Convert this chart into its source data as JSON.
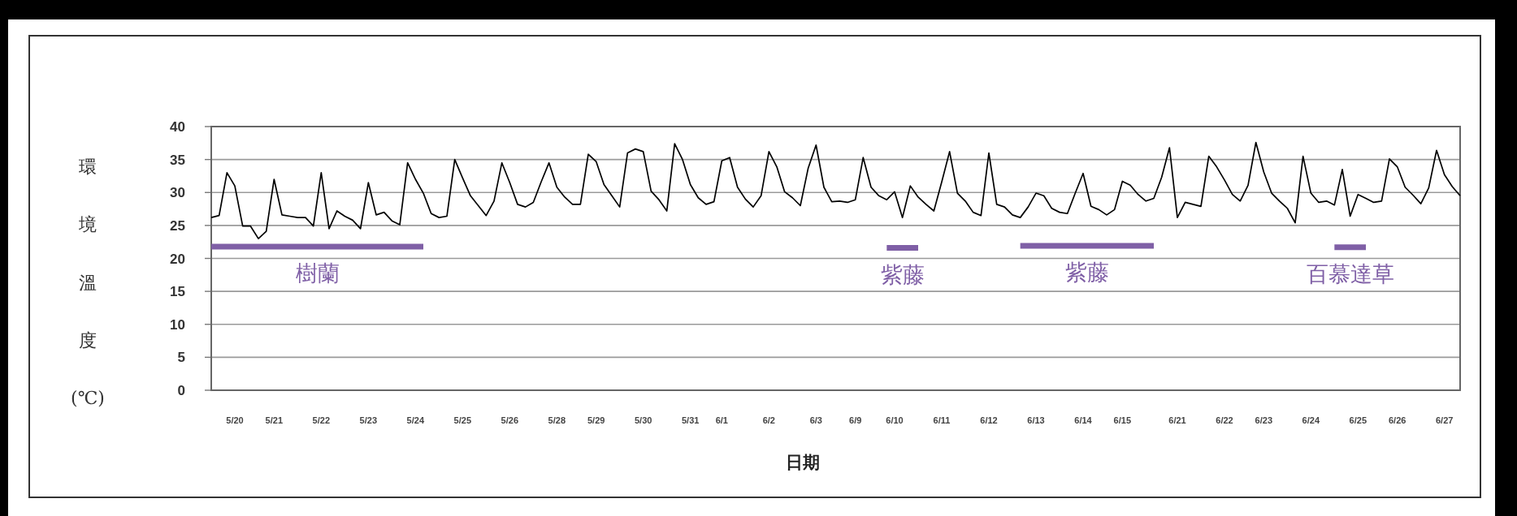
{
  "chart_data": {
    "type": "line",
    "xlabel": "日期",
    "ylabel": "環境溫度(℃)",
    "ylim": [
      0,
      40
    ],
    "yticks": [
      0,
      5,
      10,
      15,
      20,
      25,
      30,
      35,
      40
    ],
    "grid": "y",
    "line_style": "solid",
    "categories": [
      null,
      null,
      null,
      "5/20",
      null,
      null,
      null,
      null,
      "5/21",
      null,
      null,
      null,
      null,
      null,
      "5/22",
      null,
      null,
      null,
      null,
      null,
      "5/23",
      null,
      null,
      null,
      null,
      null,
      "5/24",
      null,
      null,
      null,
      null,
      null,
      "5/25",
      null,
      null,
      null,
      null,
      null,
      "5/26",
      null,
      null,
      null,
      null,
      null,
      "5/28",
      null,
      null,
      null,
      null,
      "5/29",
      null,
      null,
      null,
      null,
      null,
      "5/30",
      null,
      null,
      null,
      null,
      null,
      "5/31",
      null,
      null,
      null,
      "6/1",
      null,
      null,
      null,
      null,
      null,
      "6/2",
      null,
      null,
      null,
      null,
      null,
      "6/3",
      null,
      null,
      null,
      null,
      "6/9",
      null,
      null,
      null,
      null,
      "6/10",
      null,
      null,
      null,
      null,
      null,
      "6/11",
      null,
      null,
      null,
      null,
      null,
      "6/12",
      null,
      null,
      null,
      null,
      null,
      "6/13",
      null,
      null,
      null,
      null,
      null,
      "6/14",
      null,
      null,
      null,
      null,
      "6/15",
      null,
      null,
      null,
      null,
      null,
      null,
      "6/21",
      null,
      null,
      null,
      null,
      null,
      "6/22",
      null,
      null,
      null,
      null,
      "6/23",
      null,
      null,
      null,
      null,
      null,
      "6/24",
      null,
      null,
      null,
      null,
      null,
      "6/25",
      null,
      null,
      null,
      null,
      "6/26",
      null,
      null,
      null,
      null,
      null,
      "6/27",
      null,
      null
    ],
    "series": [
      {
        "type": "line",
        "color": "#000000",
        "values": [
          26.2,
          26.5,
          33,
          31,
          24.9,
          24.9,
          23,
          24.1,
          32,
          26.6,
          26.4,
          26.2,
          26.2,
          24.9,
          33,
          24.5,
          27.2,
          26.4,
          25.8,
          24.5,
          31.5,
          26.6,
          27,
          25.7,
          25.1,
          34.5,
          32,
          29.9,
          26.8,
          26.2,
          26.4,
          35,
          32.2,
          29.5,
          28,
          26.5,
          28.7,
          34.5,
          31.5,
          28.2,
          27.8,
          28.5,
          31.6,
          34.5,
          30.8,
          29.3,
          28.2,
          28.2,
          35.8,
          34.7,
          31.2,
          29.5,
          27.8,
          36,
          36.6,
          36.2,
          30.2,
          28.9,
          27.2,
          37.4,
          35,
          31.2,
          29.2,
          28.2,
          28.6,
          34.8,
          35.3,
          30.8,
          29,
          27.8,
          29.5,
          36.2,
          33.9,
          30.1,
          29.2,
          28,
          33.7,
          37.2,
          30.8,
          28.6,
          28.7,
          28.5,
          28.9,
          35.3,
          30.8,
          29.5,
          28.9,
          30.1,
          26.2,
          31,
          29.3,
          28.2,
          27.2,
          31.6,
          36.2,
          29.9,
          28.7,
          27,
          26.5,
          36,
          28.2,
          27.8,
          26.6,
          26.2,
          27.8,
          29.9,
          29.5,
          27.6,
          27,
          26.8,
          29.9,
          32.9,
          27.9,
          27.4,
          26.6,
          27.4,
          31.7,
          31.1,
          29.7,
          28.7,
          29.1,
          32.3,
          36.8,
          26.2,
          28.5,
          28.2,
          27.9,
          35.5,
          33.9,
          31.9,
          29.7,
          28.7,
          31.1,
          37.6,
          33.1,
          29.9,
          28.7,
          27.6,
          25.4,
          35.5,
          29.9,
          28.5,
          28.7,
          28.1,
          33.5,
          26.4,
          29.7,
          29.1,
          28.5,
          28.7,
          35.1,
          33.9,
          30.8,
          29.6,
          28.3,
          30.7,
          36.4,
          32.7,
          30.9,
          29.5
        ]
      },
      {
        "type": "line",
        "name": "樹蘭",
        "color": "#7f5fa6",
        "values": [
          21.8,
          21.8,
          21.8,
          21.8,
          21.8,
          21.8,
          21.8,
          21.8,
          21.8,
          21.8,
          21.8,
          21.8,
          21.8,
          21.8,
          21.8,
          21.8,
          21.8,
          21.8,
          21.8,
          21.8,
          21.8,
          21.8,
          21.8,
          21.8,
          21.8,
          21.8,
          21.8,
          21.8,
          null,
          null,
          null,
          null,
          null,
          null,
          null,
          null,
          null,
          null,
          null,
          null,
          null,
          null,
          null,
          null,
          null,
          null,
          null,
          null,
          null,
          null,
          null,
          null,
          null,
          null,
          null,
          null,
          null,
          null,
          null,
          null,
          null,
          null,
          null,
          null,
          null,
          null,
          null,
          null,
          null,
          null,
          null,
          null,
          null,
          null,
          null,
          null,
          null,
          null,
          null,
          null,
          null,
          null,
          null,
          null,
          null,
          null,
          null,
          null,
          null,
          null,
          null,
          null,
          null,
          null,
          null,
          null,
          null,
          null,
          null,
          null,
          null,
          null,
          null,
          null,
          null,
          null,
          null,
          null,
          null,
          null,
          null,
          null,
          null,
          null,
          null,
          null,
          null,
          null,
          null,
          null,
          null,
          null,
          null,
          null,
          null,
          null,
          null,
          null,
          null,
          null,
          null,
          null,
          null,
          null,
          null,
          null,
          null,
          null,
          null,
          null,
          null,
          null,
          null,
          null,
          null,
          null,
          null,
          null,
          null,
          null,
          null,
          null,
          null,
          null,
          null,
          null,
          null,
          null,
          null,
          null
        ]
      },
      {
        "type": "line",
        "name": "紫藤",
        "color": "#7f5fa6",
        "values": [
          null,
          null,
          null,
          null,
          null,
          null,
          null,
          null,
          null,
          null,
          null,
          null,
          null,
          null,
          null,
          null,
          null,
          null,
          null,
          null,
          null,
          null,
          null,
          null,
          null,
          null,
          null,
          null,
          null,
          null,
          null,
          null,
          null,
          null,
          null,
          null,
          null,
          null,
          null,
          null,
          null,
          null,
          null,
          null,
          null,
          null,
          null,
          null,
          null,
          null,
          null,
          null,
          null,
          null,
          null,
          null,
          null,
          null,
          null,
          null,
          null,
          null,
          null,
          null,
          null,
          null,
          null,
          null,
          null,
          null,
          null,
          null,
          null,
          null,
          null,
          null,
          null,
          null,
          null,
          null,
          null,
          null,
          null,
          null,
          null,
          null,
          21.6,
          21.6,
          21.6,
          21.6,
          21.6,
          null,
          null,
          null,
          null,
          null,
          null,
          null,
          null,
          null,
          null,
          null,
          null,
          null,
          null,
          null,
          null,
          null,
          null,
          null,
          null,
          null,
          null,
          null,
          null,
          null,
          null,
          null,
          null,
          null,
          null,
          null,
          null,
          null,
          null,
          null,
          null,
          null,
          null,
          null,
          null,
          null,
          null,
          null,
          null,
          null,
          null,
          null,
          null,
          null,
          null,
          null,
          null,
          null,
          null,
          null,
          null,
          null,
          null,
          null,
          null,
          null,
          null,
          null,
          null,
          null,
          null,
          null,
          null,
          null
        ]
      },
      {
        "type": "line",
        "name": "紫藤",
        "color": "#7f5fa6",
        "values": [
          null,
          null,
          null,
          null,
          null,
          null,
          null,
          null,
          null,
          null,
          null,
          null,
          null,
          null,
          null,
          null,
          null,
          null,
          null,
          null,
          null,
          null,
          null,
          null,
          null,
          null,
          null,
          null,
          null,
          null,
          null,
          null,
          null,
          null,
          null,
          null,
          null,
          null,
          null,
          null,
          null,
          null,
          null,
          null,
          null,
          null,
          null,
          null,
          null,
          null,
          null,
          null,
          null,
          null,
          null,
          null,
          null,
          null,
          null,
          null,
          null,
          null,
          null,
          null,
          null,
          null,
          null,
          null,
          null,
          null,
          null,
          null,
          null,
          null,
          null,
          null,
          null,
          null,
          null,
          null,
          null,
          null,
          null,
          null,
          null,
          null,
          null,
          null,
          null,
          null,
          null,
          null,
          null,
          null,
          null,
          null,
          null,
          null,
          null,
          null,
          null,
          null,
          null,
          21.9,
          21.9,
          21.9,
          21.9,
          21.9,
          21.9,
          21.9,
          21.9,
          21.9,
          21.9,
          21.9,
          21.9,
          21.9,
          21.9,
          21.9,
          21.9,
          21.9,
          21.9,
          null,
          null,
          null,
          null,
          null,
          null,
          null,
          null,
          null,
          null,
          null,
          null,
          null,
          null,
          null,
          null,
          null,
          null,
          null,
          null,
          null,
          null,
          null,
          null,
          null,
          null,
          null,
          null,
          null,
          null,
          null,
          null,
          null,
          null,
          null,
          null,
          null,
          null,
          null
        ]
      },
      {
        "type": "line",
        "name": "百慕達草",
        "color": "#7f5fa6",
        "values": [
          null,
          null,
          null,
          null,
          null,
          null,
          null,
          null,
          null,
          null,
          null,
          null,
          null,
          null,
          null,
          null,
          null,
          null,
          null,
          null,
          null,
          null,
          null,
          null,
          null,
          null,
          null,
          null,
          null,
          null,
          null,
          null,
          null,
          null,
          null,
          null,
          null,
          null,
          null,
          null,
          null,
          null,
          null,
          null,
          null,
          null,
          null,
          null,
          null,
          null,
          null,
          null,
          null,
          null,
          null,
          null,
          null,
          null,
          null,
          null,
          null,
          null,
          null,
          null,
          null,
          null,
          null,
          null,
          null,
          null,
          null,
          null,
          null,
          null,
          null,
          null,
          null,
          null,
          null,
          null,
          null,
          null,
          null,
          null,
          null,
          null,
          null,
          null,
          null,
          null,
          null,
          null,
          null,
          null,
          null,
          null,
          null,
          null,
          null,
          null,
          null,
          null,
          null,
          null,
          null,
          null,
          null,
          null,
          null,
          null,
          null,
          null,
          null,
          null,
          null,
          null,
          null,
          null,
          null,
          null,
          null,
          null,
          null,
          null,
          null,
          null,
          null,
          null,
          null,
          null,
          null,
          null,
          null,
          null,
          null,
          null,
          null,
          null,
          null,
          null,
          null,
          null,
          null,
          21.7,
          21.7,
          21.7,
          21.7,
          21.7,
          null,
          null,
          null,
          null,
          null,
          null,
          null,
          null,
          null,
          null,
          null,
          null
        ]
      }
    ]
  }
}
